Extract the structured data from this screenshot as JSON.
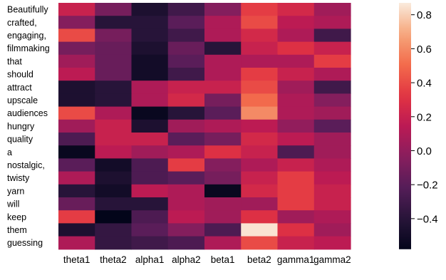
{
  "chart_data": {
    "type": "heatmap",
    "title": "",
    "xlabel": "",
    "ylabel": "",
    "x_labels": [
      "theta1",
      "theta2",
      "alpha1",
      "alpha2",
      "beta1",
      "beta2",
      "gamma1",
      "gamma2"
    ],
    "y_labels": [
      "Beautifully",
      "crafted,",
      "engaging,",
      "filmmaking",
      "that",
      "should",
      "attract",
      "upscale",
      "audiences",
      "hungry",
      "quality",
      "a",
      "nostalgic,",
      "twisty",
      "yarn",
      "will",
      "keep",
      "them",
      "guessing"
    ],
    "values": [
      [
        0.2,
        -0.1,
        -0.45,
        -0.3,
        -0.05,
        0.35,
        0.25,
        0.05
      ],
      [
        -0.05,
        -0.4,
        -0.4,
        -0.2,
        0.1,
        0.4,
        0.15,
        0.1
      ],
      [
        0.4,
        -0.1,
        -0.4,
        -0.3,
        0.1,
        0.25,
        0.1,
        -0.3
      ],
      [
        -0.1,
        -0.15,
        -0.45,
        -0.15,
        -0.4,
        0.2,
        0.3,
        0.2
      ],
      [
        0.05,
        -0.15,
        -0.5,
        -0.2,
        0.1,
        0.1,
        0.1,
        0.35
      ],
      [
        0.15,
        -0.15,
        -0.5,
        -0.3,
        0.1,
        0.35,
        0.2,
        0.1
      ],
      [
        -0.45,
        -0.4,
        0.1,
        0.2,
        0.2,
        0.4,
        0.05,
        -0.3
      ],
      [
        -0.45,
        -0.4,
        0.1,
        0.25,
        -0.1,
        0.5,
        0.1,
        -0.05
      ],
      [
        0.4,
        0.1,
        -0.55,
        -0.4,
        -0.2,
        0.6,
        0.1,
        0.05
      ],
      [
        0.05,
        0.2,
        -0.45,
        0.05,
        0.1,
        0.15,
        0.0,
        -0.2
      ],
      [
        -0.25,
        0.2,
        0.2,
        -0.2,
        -0.1,
        0.25,
        0.15,
        0.05
      ],
      [
        -0.55,
        0.15,
        0.05,
        0.1,
        0.3,
        0.2,
        -0.25,
        0.05
      ],
      [
        -0.2,
        -0.5,
        -0.25,
        0.35,
        -0.05,
        0.1,
        0.2,
        0.1
      ],
      [
        0.1,
        -0.45,
        -0.25,
        -0.2,
        -0.1,
        0.2,
        0.35,
        0.15
      ],
      [
        -0.4,
        -0.5,
        0.15,
        0.1,
        -0.55,
        0.25,
        0.35,
        0.2
      ],
      [
        -0.15,
        -0.4,
        -0.4,
        0.1,
        0.05,
        0.05,
        0.35,
        0.2
      ],
      [
        0.35,
        -0.6,
        -0.25,
        0.15,
        0.05,
        0.3,
        0.05,
        0.1
      ],
      [
        -0.45,
        -0.35,
        -0.2,
        -0.05,
        -0.25,
        0.85,
        0.3,
        0.05
      ],
      [
        0.1,
        -0.35,
        -0.3,
        -0.25,
        0.1,
        0.4,
        0.2,
        0.15
      ]
    ],
    "vmin": -0.58,
    "vmax": 0.87,
    "colormap": "rocket",
    "colorbar": {
      "ticks": [
        -0.4,
        -0.2,
        0.0,
        0.2,
        0.4,
        0.6,
        0.8
      ],
      "tick_labels": [
        "−0.4",
        "−0.2",
        "0.0",
        "0.2",
        "0.4",
        "0.6",
        "0.8"
      ]
    },
    "grid": false,
    "legend": "colorbar right"
  }
}
